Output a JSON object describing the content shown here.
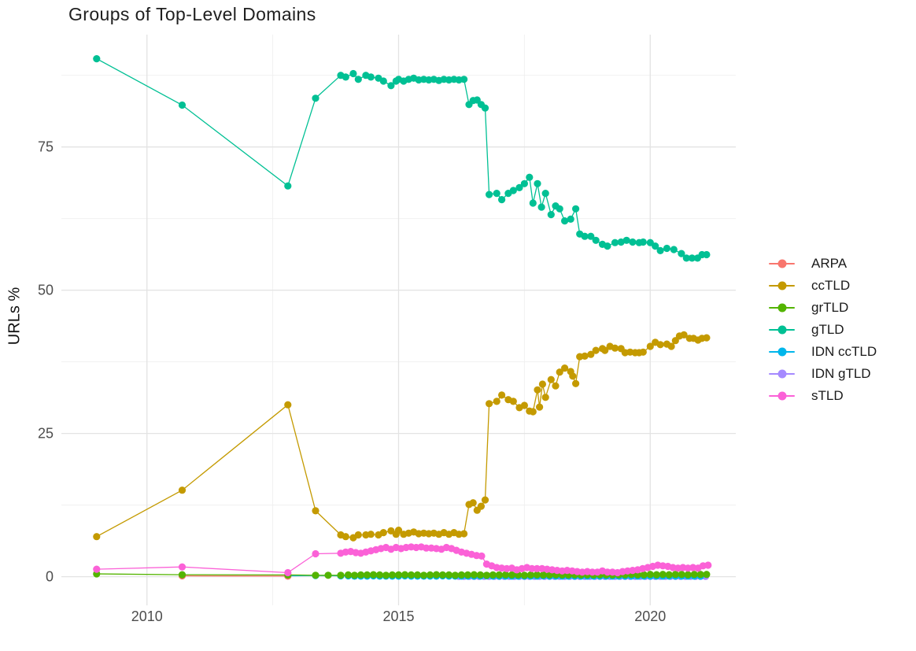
{
  "title": "Groups of Top-Level Domains",
  "axes": {
    "y_label": "URLs %",
    "y_ticks": [
      {
        "label": "0",
        "value": 0
      },
      {
        "label": "25",
        "value": 25
      },
      {
        "label": "50",
        "value": 50
      },
      {
        "label": "75",
        "value": 75
      }
    ],
    "y_minor": [
      12.5,
      37.5,
      62.5,
      87.5
    ],
    "x_ticks": [
      {
        "label": "2010",
        "value": 2010
      },
      {
        "label": "2015",
        "value": 2015
      },
      {
        "label": "2020",
        "value": 2020
      }
    ],
    "x_minor": [
      2012.5,
      2017.5
    ]
  },
  "colors": {
    "grid_major": "#e3e3e3",
    "grid_minor": "#efefef",
    "tick_label": "#4d4d4d"
  },
  "chart_data": {
    "type": "line",
    "title": "Groups of Top-Level Domains",
    "xlabel": "",
    "ylabel": "URLs %",
    "xlim": [
      2008.3,
      2021.7
    ],
    "ylim": [
      -5,
      94.6
    ],
    "grid": true,
    "legend_position": "right",
    "series": [
      {
        "name": "ARPA",
        "color": "#F8766D",
        "z": 3,
        "points": [
          [
            2010.7,
            0.15
          ],
          [
            2012.8,
            0.1
          ]
        ]
      },
      {
        "name": "ccTLD",
        "color": "#C49A00",
        "z": 5,
        "points": [
          [
            2009.0,
            7.0
          ],
          [
            2010.7,
            15.1
          ],
          [
            2012.8,
            30.0
          ],
          [
            2013.35,
            11.5
          ],
          [
            2013.85,
            7.3
          ],
          [
            2013.95,
            7.0
          ],
          [
            2014.1,
            6.8
          ],
          [
            2014.2,
            7.3
          ],
          [
            2014.35,
            7.3
          ],
          [
            2014.45,
            7.4
          ],
          [
            2014.6,
            7.3
          ],
          [
            2014.7,
            7.7
          ],
          [
            2014.85,
            8.0
          ],
          [
            2014.95,
            7.4
          ],
          [
            2015.0,
            8.1
          ],
          [
            2015.1,
            7.4
          ],
          [
            2015.2,
            7.6
          ],
          [
            2015.3,
            7.8
          ],
          [
            2015.4,
            7.5
          ],
          [
            2015.5,
            7.6
          ],
          [
            2015.6,
            7.5
          ],
          [
            2015.7,
            7.6
          ],
          [
            2015.8,
            7.4
          ],
          [
            2015.9,
            7.7
          ],
          [
            2016.0,
            7.4
          ],
          [
            2016.1,
            7.7
          ],
          [
            2016.2,
            7.4
          ],
          [
            2016.3,
            7.5
          ],
          [
            2016.4,
            12.6
          ],
          [
            2016.48,
            12.9
          ],
          [
            2016.56,
            11.6
          ],
          [
            2016.64,
            12.3
          ],
          [
            2016.72,
            13.4
          ],
          [
            2016.8,
            30.2
          ],
          [
            2016.95,
            30.6
          ],
          [
            2017.05,
            31.7
          ],
          [
            2017.18,
            30.9
          ],
          [
            2017.28,
            30.6
          ],
          [
            2017.4,
            29.5
          ],
          [
            2017.5,
            29.9
          ],
          [
            2017.6,
            28.9
          ],
          [
            2017.67,
            28.8
          ],
          [
            2017.76,
            32.6
          ],
          [
            2017.8,
            29.6
          ],
          [
            2017.86,
            33.6
          ],
          [
            2017.92,
            31.3
          ],
          [
            2018.03,
            34.4
          ],
          [
            2018.12,
            33.3
          ],
          [
            2018.2,
            35.7
          ],
          [
            2018.3,
            36.4
          ],
          [
            2018.42,
            35.8
          ],
          [
            2018.46,
            35.0
          ],
          [
            2018.52,
            33.7
          ],
          [
            2018.6,
            38.4
          ],
          [
            2018.7,
            38.5
          ],
          [
            2018.82,
            38.8
          ],
          [
            2018.92,
            39.5
          ],
          [
            2019.05,
            39.8
          ],
          [
            2019.1,
            39.5
          ],
          [
            2019.2,
            40.2
          ],
          [
            2019.3,
            39.9
          ],
          [
            2019.42,
            39.8
          ],
          [
            2019.5,
            39.1
          ],
          [
            2019.6,
            39.2
          ],
          [
            2019.7,
            39.1
          ],
          [
            2019.78,
            39.1
          ],
          [
            2019.86,
            39.2
          ],
          [
            2020.0,
            40.2
          ],
          [
            2020.1,
            40.9
          ],
          [
            2020.2,
            40.5
          ],
          [
            2020.33,
            40.6
          ],
          [
            2020.42,
            40.2
          ],
          [
            2020.5,
            41.2
          ],
          [
            2020.58,
            42.0
          ],
          [
            2020.67,
            42.2
          ],
          [
            2020.78,
            41.6
          ],
          [
            2020.86,
            41.6
          ],
          [
            2020.95,
            41.3
          ],
          [
            2021.03,
            41.6
          ],
          [
            2021.12,
            41.7
          ]
        ]
      },
      {
        "name": "grTLD",
        "color": "#53B400",
        "z": 4,
        "points": [
          [
            2009.0,
            0.5
          ],
          [
            2010.7,
            0.35
          ],
          [
            2012.8,
            0.3
          ],
          [
            2013.35,
            0.25
          ],
          [
            2013.6,
            0.25
          ],
          [
            2013.85,
            0.25
          ],
          [
            2021.12,
            0.4
          ]
        ],
        "dense": {
          "start": 2014.0,
          "step": 0.125,
          "values": [
            0.3,
            0.25,
            0.3,
            0.3,
            0.35,
            0.3,
            0.25,
            0.3,
            0.3,
            0.35,
            0.3,
            0.3,
            0.25,
            0.3,
            0.35,
            0.3,
            0.3,
            0.25,
            0.3,
            0.3,
            0.35,
            0.3,
            0.25,
            0.3,
            0.3,
            0.35,
            0.3,
            0.3,
            0.25,
            0.3,
            0.35,
            0.3,
            0.3,
            0.35,
            0.3,
            0.3,
            0.35,
            0.3,
            0.35,
            0.3,
            0.35,
            0.35,
            0.3,
            0.35,
            0.35,
            0.4,
            0.35,
            0.35,
            0.4,
            0.35,
            0.4,
            0.35,
            0.4,
            0.4,
            0.35,
            0.4,
            0.4
          ]
        }
      },
      {
        "name": "gTLD",
        "color": "#00C094",
        "z": 6,
        "points": [
          [
            2009.0,
            90.4
          ],
          [
            2010.7,
            82.3
          ],
          [
            2012.8,
            68.2
          ],
          [
            2013.35,
            83.5
          ],
          [
            2013.85,
            87.5
          ],
          [
            2013.95,
            87.2
          ],
          [
            2014.1,
            87.8
          ],
          [
            2014.2,
            86.8
          ],
          [
            2014.35,
            87.5
          ],
          [
            2014.45,
            87.2
          ],
          [
            2014.6,
            87.0
          ],
          [
            2014.7,
            86.5
          ],
          [
            2014.85,
            85.7
          ],
          [
            2014.95,
            86.5
          ],
          [
            2015.0,
            86.8
          ],
          [
            2015.1,
            86.5
          ],
          [
            2015.2,
            86.8
          ],
          [
            2015.3,
            87.0
          ],
          [
            2015.4,
            86.7
          ],
          [
            2015.5,
            86.8
          ],
          [
            2015.6,
            86.7
          ],
          [
            2015.7,
            86.8
          ],
          [
            2015.8,
            86.6
          ],
          [
            2015.9,
            86.8
          ],
          [
            2016.0,
            86.7
          ],
          [
            2016.1,
            86.8
          ],
          [
            2016.2,
            86.7
          ],
          [
            2016.3,
            86.8
          ],
          [
            2016.4,
            82.4
          ],
          [
            2016.48,
            83.1
          ],
          [
            2016.56,
            83.2
          ],
          [
            2016.64,
            82.4
          ],
          [
            2016.72,
            81.8
          ],
          [
            2016.8,
            66.7
          ],
          [
            2016.95,
            66.9
          ],
          [
            2017.05,
            65.8
          ],
          [
            2017.18,
            66.9
          ],
          [
            2017.28,
            67.4
          ],
          [
            2017.4,
            67.9
          ],
          [
            2017.5,
            68.6
          ],
          [
            2017.6,
            69.7
          ],
          [
            2017.67,
            65.2
          ],
          [
            2017.76,
            68.6
          ],
          [
            2017.84,
            64.5
          ],
          [
            2017.92,
            66.9
          ],
          [
            2018.03,
            63.2
          ],
          [
            2018.12,
            64.7
          ],
          [
            2018.2,
            64.2
          ],
          [
            2018.3,
            62.1
          ],
          [
            2018.42,
            62.4
          ],
          [
            2018.52,
            64.2
          ],
          [
            2018.6,
            59.8
          ],
          [
            2018.7,
            59.4
          ],
          [
            2018.82,
            59.4
          ],
          [
            2018.92,
            58.7
          ],
          [
            2019.05,
            58.0
          ],
          [
            2019.15,
            57.7
          ],
          [
            2019.3,
            58.3
          ],
          [
            2019.42,
            58.4
          ],
          [
            2019.53,
            58.7
          ],
          [
            2019.65,
            58.4
          ],
          [
            2019.78,
            58.3
          ],
          [
            2019.86,
            58.4
          ],
          [
            2020.0,
            58.3
          ],
          [
            2020.1,
            57.7
          ],
          [
            2020.2,
            56.9
          ],
          [
            2020.33,
            57.3
          ],
          [
            2020.47,
            57.1
          ],
          [
            2020.62,
            56.4
          ],
          [
            2020.72,
            55.6
          ],
          [
            2020.83,
            55.6
          ],
          [
            2020.94,
            55.6
          ],
          [
            2021.03,
            56.2
          ],
          [
            2021.12,
            56.2
          ]
        ]
      },
      {
        "name": "IDN ccTLD",
        "color": "#00B6EB",
        "z": 2,
        "points": [
          [
            2012.8,
            0.15
          ],
          [
            2013.35,
            0.2
          ],
          [
            2013.85,
            0.15
          ]
        ],
        "dense": {
          "start": 2014.0,
          "step": 0.125,
          "values": [
            0.15,
            0.1,
            0.1,
            0.1,
            0.15,
            0.1,
            0.1,
            0.1,
            0.1,
            0.15,
            0.1,
            0.1,
            0.1,
            0.1,
            0.1,
            0.15,
            0.1,
            0.1,
            0.1,
            0.1,
            0.1,
            0.1,
            0.15,
            0.1,
            0.1,
            0.1,
            0.1,
            0.1,
            0.1,
            0.1,
            0.1,
            0.15,
            0.1,
            0.1,
            0.1,
            0.1,
            0.1,
            0.1,
            0.1,
            0.1,
            0.1,
            0.1,
            0.1,
            0.1,
            0.1,
            0.1,
            0.1,
            0.1,
            0.1,
            0.1,
            0.1,
            0.1,
            0.1,
            0.1,
            0.1,
            0.1,
            0.1
          ]
        }
      },
      {
        "name": "IDN gTLD",
        "color": "#A58AFF",
        "z": 1,
        "points": [],
        "dense": {
          "start": 2016.2,
          "step": 0.1,
          "values": [
            0.05,
            0.05,
            0.05,
            0.05,
            0.05,
            0.05,
            0.05,
            0.05,
            0.05,
            0.05,
            0.05,
            0.05,
            0.05,
            0.05,
            0.05,
            0.05,
            0.05,
            0.05,
            0.05,
            0.05,
            0.05,
            0.05,
            0.05,
            0.05,
            0.05,
            0.05,
            0.05,
            0.05,
            0.05,
            0.05,
            0.05,
            0.05,
            0.05,
            0.05,
            0.05,
            0.05,
            0.05,
            0.05,
            0.05,
            0.05,
            0.05,
            0.05,
            0.05,
            0.05,
            0.05,
            0.05,
            0.05,
            0.05,
            0.05,
            0.05
          ]
        }
      },
      {
        "name": "sTLD",
        "color": "#FB61D7",
        "z": 7,
        "points": [
          [
            2009.0,
            1.3
          ],
          [
            2010.7,
            1.7
          ],
          [
            2012.8,
            0.7
          ],
          [
            2013.35,
            4.0
          ]
        ],
        "dense": {
          "start": 2013.85,
          "step": 0.1,
          "values": [
            4.1,
            4.3,
            4.4,
            4.2,
            4.1,
            4.3,
            4.5,
            4.7,
            4.9,
            5.1,
            4.8,
            5.1,
            4.9,
            5.1,
            5.2,
            5.1,
            5.2,
            5.0,
            5.0,
            4.9,
            4.8,
            5.1,
            4.9,
            4.6,
            4.3,
            4.1,
            3.9,
            3.7,
            3.6,
            2.2,
            1.9,
            1.6,
            1.5,
            1.4,
            1.5,
            1.2,
            1.4,
            1.6,
            1.4,
            1.4,
            1.4,
            1.3,
            1.2,
            1.1,
            1.0,
            1.1,
            1.0,
            0.9,
            0.8,
            0.9,
            0.8,
            0.8,
            1.0,
            0.8,
            0.8,
            0.7,
            0.9,
            1.0,
            1.1,
            1.2,
            1.4,
            1.6,
            1.8,
            2.0,
            1.9,
            1.8,
            1.6,
            1.5,
            1.6,
            1.5,
            1.6,
            1.5,
            1.9,
            2.0
          ]
        }
      }
    ]
  }
}
